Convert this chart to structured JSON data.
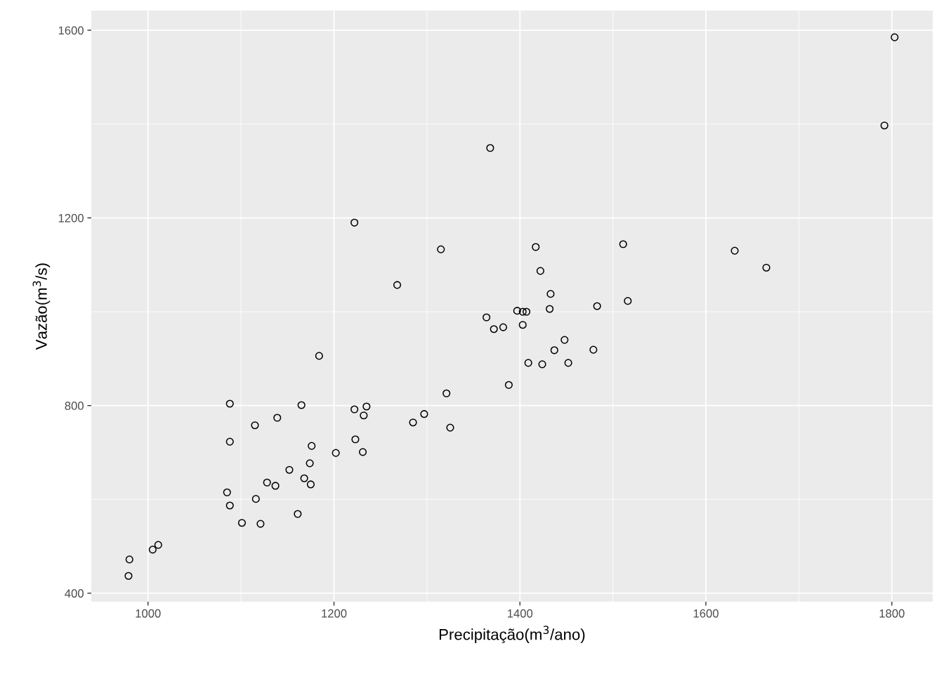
{
  "chart_data": {
    "type": "scatter",
    "xlabel": "Precipitação(m$^{3}$/ano)",
    "ylabel": "Vazão(m$^{3}$/s)",
    "x": [
      1803,
      1792,
      1368,
      1222,
      1315,
      1417,
      1511,
      1631,
      1665,
      1422,
      1268,
      1433,
      1516,
      1483,
      1432,
      1397,
      1403,
      1407,
      1364,
      1382,
      1372,
      1403,
      1448,
      1437,
      1479,
      1409,
      1424,
      1452,
      1184,
      1388,
      1321,
      1088,
      1165,
      1222,
      1235,
      1232,
      1139,
      1297,
      1285,
      1325,
      1115,
      1088,
      1223,
      1176,
      1202,
      1231,
      1174,
      1152,
      1168,
      1128,
      1137,
      1175,
      1085,
      1116,
      1088,
      1161,
      1101,
      1121,
      1011,
      1005,
      980,
      979
    ],
    "series": [
      {
        "color": "#000000",
        "values": [
          1585,
          1397,
          1349,
          1190,
          1133,
          1138,
          1144,
          1130,
          1094,
          1087,
          1057,
          1038,
          1023,
          1012,
          1006,
          1002,
          1000,
          1000,
          988,
          967,
          963,
          972,
          940,
          918,
          919,
          891,
          888,
          891,
          906,
          844,
          826,
          804,
          801,
          792,
          798,
          779,
          774,
          782,
          764,
          753,
          758,
          723,
          728,
          714,
          699,
          701,
          677,
          663,
          645,
          636,
          629,
          632,
          615,
          601,
          587,
          569,
          550,
          548,
          503,
          493,
          472,
          437
        ]
      }
    ],
    "marker": "circle",
    "grid": true,
    "legend": false,
    "xlim": [
      939,
      1844
    ],
    "ylim": [
      382,
      1642
    ],
    "xticks": [
      1000,
      {
        "value": 1100,
        "label": null
      },
      1200,
      {
        "value": 1300,
        "label": null
      },
      1400,
      {
        "value": 1500,
        "label": null
      },
      1600,
      {
        "value": 1700,
        "label": null
      },
      1800
    ],
    "yticks": [
      400,
      {
        "value": 600,
        "label": null
      },
      800,
      {
        "value": 1000,
        "label": null
      },
      1200,
      {
        "value": 1400,
        "label": null
      },
      1600
    ]
  }
}
